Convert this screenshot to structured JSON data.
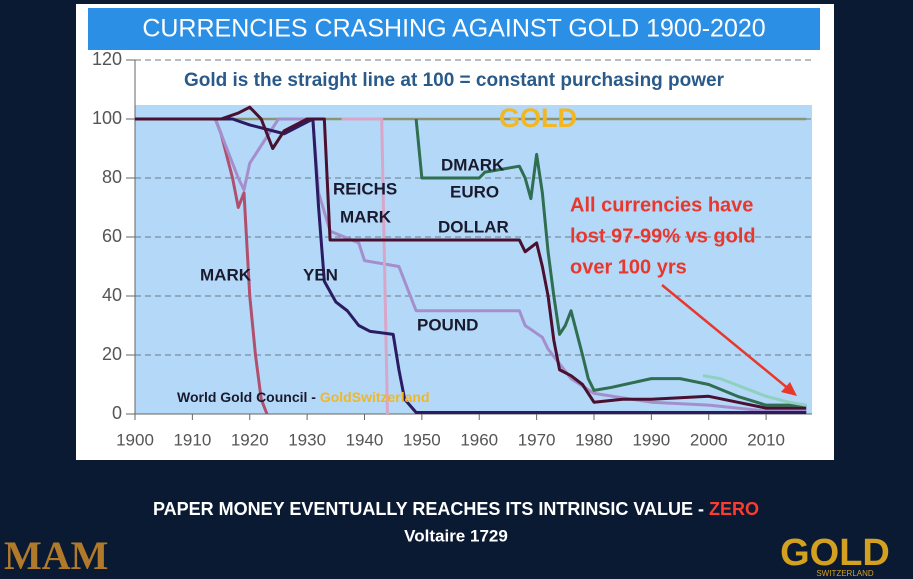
{
  "chart_data": {
    "type": "line",
    "title": "CURRENCIES CRASHING AGAINST GOLD 1900-2020",
    "subtitle": "Gold is the straight line at 100 = constant purchasing power",
    "gold_label": "GOLD",
    "annotations": [
      "MARK",
      "YEN",
      "REICHS",
      "MARK",
      "DMARK",
      "EURO",
      "DOLLAR",
      "POUND"
    ],
    "callout": [
      "All currencies have",
      "lost 97-99% vs gold",
      "over 100 yrs"
    ],
    "source": "World Gold Council - ",
    "source_highlight": "GoldSwitzerland",
    "caption": "PAPER MONEY EVENTUALLY REACHES ITS INTRINSIC VALUE - ",
    "caption_highlight": "ZERO",
    "attribution": "Voltaire 1729",
    "logo_left": "MAM",
    "logo_right": "GOLD",
    "logo_right_sub": "SWITZERLAND",
    "xlim": [
      1900,
      2018
    ],
    "ylim": [
      0,
      120
    ],
    "xticks": [
      1900,
      1910,
      1920,
      1930,
      1940,
      1950,
      1960,
      1970,
      1980,
      1990,
      2000,
      2010
    ],
    "yticks": [
      0,
      20,
      40,
      60,
      80,
      100,
      120
    ],
    "grid": true,
    "series": [
      {
        "color": "#8a9372",
        "x": [
          1900,
          2017
        ],
        "values": [
          100,
          100
        ]
      },
      {
        "color": "#b0506e",
        "x": [
          1900,
          1914,
          1915,
          1917,
          1918,
          1919,
          1920,
          1921,
          1922,
          1923
        ],
        "values": [
          100,
          100,
          95,
          80,
          70,
          75,
          40,
          20,
          5,
          0
        ]
      },
      {
        "color": "#a48fcc",
        "x": [
          1900,
          1914,
          1918,
          1919,
          1920,
          1925,
          1931,
          1932,
          1934,
          1939,
          1940,
          1946,
          1949,
          1967,
          1968,
          1971,
          1972,
          1976,
          1980,
          1990,
          2000,
          2010,
          2017
        ],
        "values": [
          100,
          100,
          80,
          76,
          85,
          100,
          100,
          75,
          62,
          58,
          52,
          50,
          35,
          35,
          30,
          26,
          22,
          12,
          7,
          4,
          3,
          1,
          1
        ]
      },
      {
        "color": "#d9a6c9",
        "x": [
          1936,
          1943,
          1944
        ],
        "values": [
          100,
          100,
          0
        ]
      },
      {
        "color": "#2b1b62",
        "x": [
          1900,
          1917,
          1920,
          1926,
          1931,
          1932,
          1933,
          1935,
          1937,
          1939,
          1941,
          1945,
          1946,
          1947,
          1949,
          2017
        ],
        "values": [
          100,
          100,
          98,
          95,
          100,
          70,
          45,
          38,
          35,
          30,
          28,
          27,
          15,
          5,
          0.5,
          0.5
        ]
      },
      {
        "color": "#4a1030",
        "x": [
          1900,
          1915,
          1918,
          1920,
          1922,
          1924,
          1926,
          1930,
          1933,
          1934,
          1967,
          1968,
          1970,
          1971,
          1972,
          1973,
          1974,
          1976,
          1978,
          1980,
          1985,
          1990,
          2000,
          2005,
          2010,
          2017
        ],
        "values": [
          100,
          100,
          102,
          104,
          100,
          90,
          96,
          100,
          100,
          59,
          59,
          55,
          58,
          50,
          40,
          25,
          15,
          13,
          10,
          4,
          5,
          5,
          6,
          4,
          2,
          2
        ]
      },
      {
        "color": "#2f6e50",
        "x": [
          1949,
          1950,
          1960,
          1961,
          1967,
          1968,
          1969,
          1970,
          1971,
          1972,
          1973,
          1974,
          1975,
          1976,
          1978,
          1979,
          1980,
          1983,
          1990,
          1995,
          2000,
          2005,
          2010,
          2017
        ],
        "values": [
          100,
          80,
          80,
          82,
          84,
          80,
          73,
          88,
          75,
          55,
          40,
          27,
          30,
          35,
          20,
          12,
          8,
          9,
          12,
          12,
          10,
          6,
          3,
          3
        ]
      },
      {
        "color": "#8fd0c0",
        "x": [
          1999,
          2002,
          2006,
          2010,
          2014,
          2017
        ],
        "values": [
          13,
          12,
          9,
          6,
          4,
          3
        ]
      }
    ]
  }
}
